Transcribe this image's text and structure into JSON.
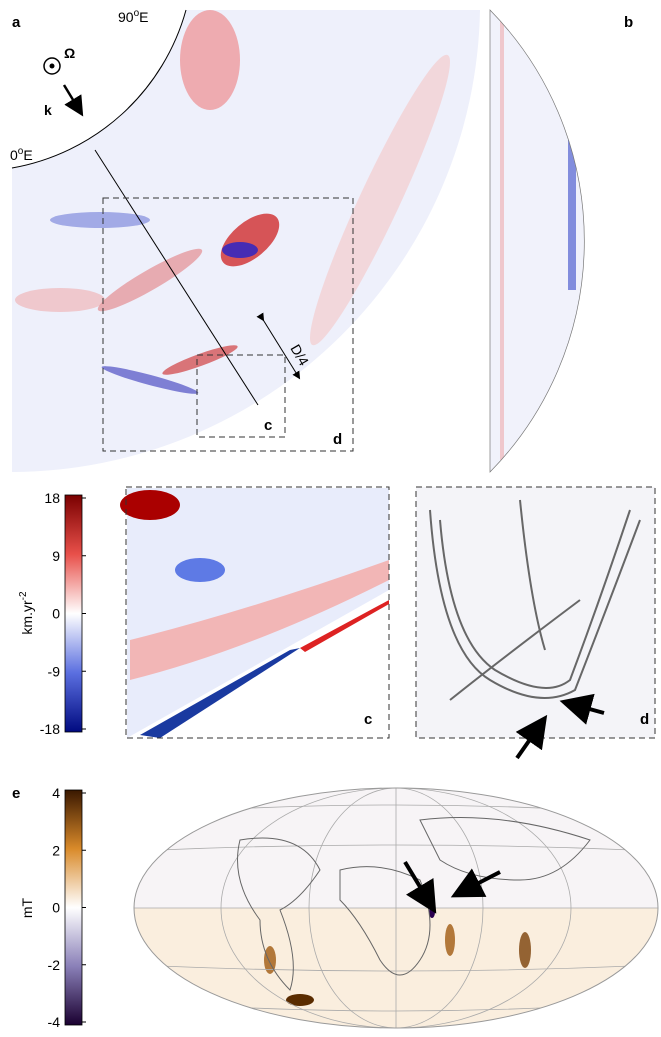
{
  "panels": {
    "a": {
      "label": "a",
      "lon_top": {
        "number": "90",
        "degree": "o",
        "suffix": "E"
      },
      "lon_left": {
        "number": "0",
        "degree": "o",
        "suffix": "E"
      },
      "omega": "Ω",
      "k": "k",
      "scale": "D/4",
      "box_c": "c",
      "box_d": "d"
    },
    "b": {
      "label": "b"
    },
    "c": {
      "label": "c"
    },
    "d": {
      "label": "d"
    },
    "e": {
      "label": "e"
    }
  },
  "colorbar_flow": {
    "unit": {
      "base": "km.yr",
      "exponent": "-2"
    },
    "ticks": [
      "18",
      "9",
      "0",
      "-9",
      "-18"
    ]
  },
  "colorbar_field": {
    "unit": "mT",
    "ticks": [
      "4",
      "2",
      "0",
      "-2",
      "-4"
    ]
  }
}
